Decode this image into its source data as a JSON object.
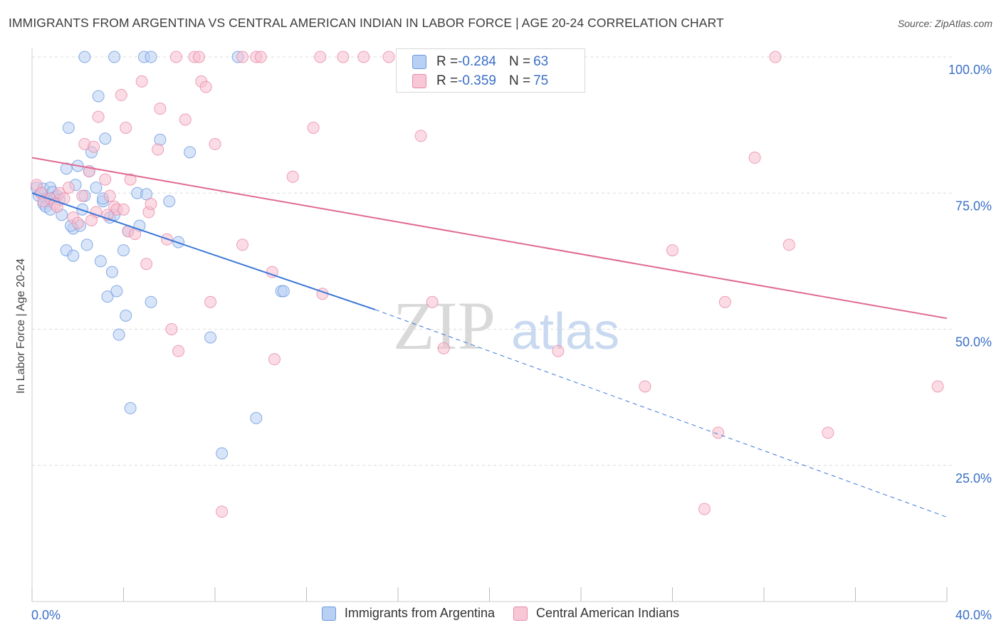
{
  "title": "IMMIGRANTS FROM ARGENTINA VS CENTRAL AMERICAN INDIAN IN LABOR FORCE | AGE 20-24 CORRELATION CHART",
  "source": "Source: ZipAtlas.com",
  "watermark": {
    "zip": "ZIP",
    "atlas": "atlas"
  },
  "colors": {
    "blue": "#3a78d8",
    "blue_fill": "#b8d0f4",
    "pink": "#e06a92",
    "pink_fill": "#f7bfd0",
    "value_text": "#3a6fc7",
    "grid": "#dcdcdc"
  },
  "stats": {
    "rows": [
      {
        "r_label": "R = ",
        "r_value": "-0.284",
        "n_label": "N = ",
        "n_value": "63"
      },
      {
        "r_label": "R = ",
        "r_value": "-0.359",
        "n_label": "N = ",
        "n_value": "75"
      }
    ]
  },
  "legend": {
    "series1": "Immigrants from Argentina",
    "series2": "Central American Indians"
  },
  "chart_data": {
    "type": "scatter",
    "title": "IMMIGRANTS FROM ARGENTINA VS CENTRAL AMERICAN INDIAN IN LABOR FORCE | AGE 20-24 CORRELATION CHART",
    "xlabel": "",
    "ylabel": "In Labor Force | Age 20-24",
    "xlim": [
      0,
      40
    ],
    "ylim": [
      0,
      100
    ],
    "x_tick_labels": [
      "0.0%",
      "40.0%"
    ],
    "y_tick_labels": [
      "100.0%",
      "75.0%",
      "50.0%",
      "25.0%"
    ],
    "y_ticks": [
      100,
      75,
      50,
      25
    ],
    "grid": true,
    "legend_position": "bottom",
    "series": [
      {
        "name": "Immigrants from Argentina",
        "r": -0.284,
        "n": 63,
        "trend": {
          "x0": 0,
          "y0": 75.0,
          "x1": 15.0,
          "y1": 53.6,
          "dashed_to_x": 40,
          "dashed_to_y": 15.5
        },
        "points": [
          [
            0.2,
            76
          ],
          [
            0.3,
            74.5
          ],
          [
            0.4,
            75
          ],
          [
            0.5,
            75.8
          ],
          [
            0.6,
            74
          ],
          [
            0.7,
            73.5
          ],
          [
            0.8,
            76
          ],
          [
            0.9,
            75.2
          ],
          [
            1.0,
            74.2
          ],
          [
            0.5,
            73
          ],
          [
            0.6,
            72.5
          ],
          [
            1.1,
            74.5
          ],
          [
            1.2,
            73.8
          ],
          [
            1.3,
            71
          ],
          [
            1.5,
            79.5
          ],
          [
            1.6,
            87
          ],
          [
            1.8,
            68.5
          ],
          [
            1.9,
            76.5
          ],
          [
            2.0,
            80
          ],
          [
            2.1,
            69
          ],
          [
            2.2,
            72
          ],
          [
            2.3,
            74.5
          ],
          [
            2.4,
            65.5
          ],
          [
            2.5,
            79
          ],
          [
            2.6,
            82.5
          ],
          [
            2.8,
            76
          ],
          [
            2.9,
            92.8
          ],
          [
            3.0,
            62.5
          ],
          [
            3.1,
            73.5
          ],
          [
            3.2,
            85
          ],
          [
            3.3,
            56
          ],
          [
            3.4,
            70.5
          ],
          [
            3.5,
            60.5
          ],
          [
            3.7,
            57
          ],
          [
            3.8,
            49
          ],
          [
            4.0,
            64.5
          ],
          [
            4.1,
            52.5
          ],
          [
            4.2,
            68
          ],
          [
            4.3,
            35.5
          ],
          [
            4.6,
            75
          ],
          [
            4.7,
            69
          ],
          [
            5.0,
            74.8
          ],
          [
            5.2,
            55
          ],
          [
            5.6,
            84.8
          ],
          [
            6.0,
            73.5
          ],
          [
            6.4,
            66
          ],
          [
            6.9,
            82.5
          ],
          [
            7.8,
            48.5
          ],
          [
            8.3,
            27.2
          ],
          [
            9.8,
            33.7
          ],
          [
            10.9,
            57
          ],
          [
            11.0,
            57
          ],
          [
            3.6,
            100
          ],
          [
            4.9,
            100
          ],
          [
            5.2,
            100
          ],
          [
            9.0,
            100
          ],
          [
            1.5,
            64.5
          ],
          [
            1.8,
            63.5
          ],
          [
            2.3,
            100
          ],
          [
            3.6,
            71
          ],
          [
            0.8,
            72
          ],
          [
            1.7,
            69
          ],
          [
            3.1,
            74
          ]
        ]
      },
      {
        "name": "Central American Indians",
        "r": -0.359,
        "n": 75,
        "trend": {
          "x0": 0,
          "y0": 81.5,
          "x1": 40,
          "y1": 52.0
        },
        "points": [
          [
            0.2,
            76.5
          ],
          [
            0.4,
            75
          ],
          [
            0.5,
            73.5
          ],
          [
            0.8,
            74
          ],
          [
            1.0,
            73
          ],
          [
            1.2,
            75
          ],
          [
            1.4,
            74
          ],
          [
            1.6,
            76
          ],
          [
            1.8,
            70.5
          ],
          [
            2.0,
            69.5
          ],
          [
            2.2,
            74.5
          ],
          [
            2.3,
            84
          ],
          [
            2.5,
            79
          ],
          [
            2.7,
            83.5
          ],
          [
            2.8,
            71.5
          ],
          [
            2.9,
            89
          ],
          [
            3.2,
            77.5
          ],
          [
            3.4,
            74.5
          ],
          [
            3.6,
            72.5
          ],
          [
            3.7,
            72
          ],
          [
            3.9,
            93
          ],
          [
            4.1,
            87
          ],
          [
            4.2,
            68
          ],
          [
            4.3,
            77.5
          ],
          [
            4.5,
            67.5
          ],
          [
            4.8,
            95.5
          ],
          [
            5.0,
            62
          ],
          [
            5.1,
            71.5
          ],
          [
            5.2,
            73
          ],
          [
            5.5,
            83
          ],
          [
            5.6,
            90.5
          ],
          [
            5.9,
            66.5
          ],
          [
            6.1,
            50
          ],
          [
            6.4,
            46
          ],
          [
            6.7,
            88.5
          ],
          [
            7.4,
            95.5
          ],
          [
            7.6,
            94.5
          ],
          [
            7.8,
            55
          ],
          [
            8.0,
            84
          ],
          [
            8.3,
            16.5
          ],
          [
            9.2,
            65.5
          ],
          [
            9.8,
            100
          ],
          [
            10.5,
            60.5
          ],
          [
            10.6,
            44.5
          ],
          [
            11.4,
            78
          ],
          [
            12.3,
            87
          ],
          [
            12.7,
            56.5
          ],
          [
            13.6,
            100
          ],
          [
            14.5,
            100
          ],
          [
            15.6,
            100
          ],
          [
            17.0,
            85.5
          ],
          [
            17.5,
            55
          ],
          [
            18.0,
            46.5
          ],
          [
            18.5,
            100
          ],
          [
            23.0,
            46
          ],
          [
            26.8,
            39.5
          ],
          [
            28.0,
            64.5
          ],
          [
            29.4,
            17
          ],
          [
            30.0,
            31
          ],
          [
            30.3,
            55
          ],
          [
            31.6,
            81.5
          ],
          [
            32.5,
            100
          ],
          [
            33.1,
            65.5
          ],
          [
            34.8,
            31
          ],
          [
            39.6,
            39.5
          ],
          [
            6.3,
            100
          ],
          [
            7.1,
            100
          ],
          [
            7.3,
            100
          ],
          [
            9.2,
            100
          ],
          [
            10.0,
            100
          ],
          [
            12.6,
            100
          ],
          [
            1.1,
            72.5
          ],
          [
            2.6,
            70
          ],
          [
            3.3,
            71
          ],
          [
            4.0,
            72
          ]
        ]
      }
    ]
  }
}
